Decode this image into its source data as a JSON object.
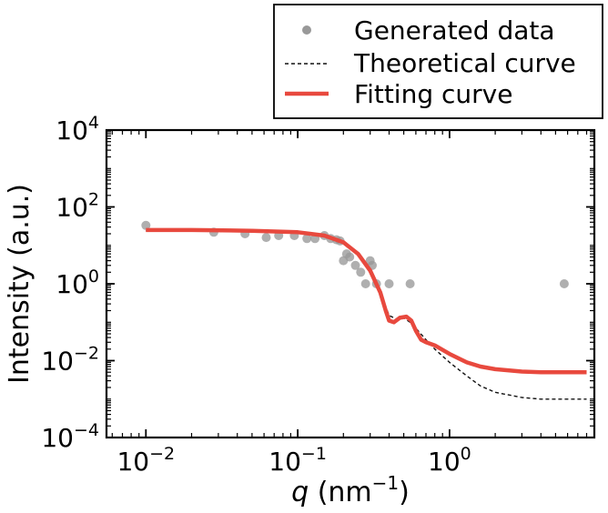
{
  "chart_data": {
    "type": "scatter",
    "title": "",
    "xlabel": {
      "symbol": "q",
      "unit_prefix": " (nm",
      "unit_exp": "−1",
      "unit_suffix": ")"
    },
    "ylabel": "Intensity (a.u.)",
    "xscale": "log",
    "yscale": "log",
    "xlim": [
      0.0055,
      9
    ],
    "ylim": [
      0.0001,
      10000
    ],
    "legend_position": "top-right, above plot",
    "x_ticks": [
      {
        "value": 0.01,
        "base": "10",
        "exp": "−2"
      },
      {
        "value": 0.1,
        "base": "10",
        "exp": "−1"
      },
      {
        "value": 1,
        "base": "10",
        "exp": "0"
      }
    ],
    "y_ticks": [
      {
        "value": 0.0001,
        "base": "10",
        "exp": "−4"
      },
      {
        "value": 0.01,
        "base": "10",
        "exp": "−2"
      },
      {
        "value": 1,
        "base": "10",
        "exp": "0"
      },
      {
        "value": 100,
        "base": "10",
        "exp": "2"
      },
      {
        "value": 10000,
        "base": "10",
        "exp": "4"
      }
    ],
    "series": [
      {
        "name": "Generated data",
        "kind": "scatter",
        "color": "#999999",
        "x": [
          0.01,
          0.028,
          0.045,
          0.062,
          0.075,
          0.095,
          0.115,
          0.13,
          0.15,
          0.165,
          0.18,
          0.19,
          0.2,
          0.21,
          0.22,
          0.24,
          0.26,
          0.28,
          0.3,
          0.31,
          0.33,
          0.4,
          0.55,
          5.7
        ],
        "y": [
          33,
          22,
          20,
          16,
          18,
          18,
          15,
          15,
          18,
          15,
          14,
          13,
          4,
          6,
          5,
          3,
          2,
          1,
          4,
          3,
          1,
          1,
          1,
          1
        ]
      },
      {
        "name": "Theoretical curve",
        "kind": "line",
        "style": "dashed",
        "color": "#111111",
        "x": [
          0.01,
          0.02,
          0.05,
          0.1,
          0.15,
          0.2,
          0.25,
          0.3,
          0.35,
          0.4,
          0.45,
          0.5,
          0.55,
          0.6,
          0.7,
          0.8,
          1,
          1.3,
          1.6,
          2,
          3,
          4,
          6,
          8
        ],
        "y": [
          24,
          24,
          23,
          21,
          17,
          11,
          5.5,
          2,
          0.6,
          0.15,
          0.12,
          0.13,
          0.1,
          0.07,
          0.035,
          0.02,
          0.009,
          0.004,
          0.0022,
          0.0015,
          0.0011,
          0.001,
          0.001,
          0.001
        ]
      },
      {
        "name": "Fitting curve",
        "kind": "line",
        "style": "solid",
        "color": "#e8493e",
        "x": [
          0.01,
          0.02,
          0.05,
          0.1,
          0.15,
          0.2,
          0.25,
          0.3,
          0.35,
          0.38,
          0.4,
          0.43,
          0.47,
          0.52,
          0.56,
          0.6,
          0.65,
          0.7,
          0.8,
          1,
          1.3,
          1.6,
          2,
          3,
          4,
          6,
          8
        ],
        "y": [
          25,
          25,
          24,
          22,
          18,
          12,
          6,
          2.2,
          0.6,
          0.2,
          0.11,
          0.1,
          0.13,
          0.14,
          0.11,
          0.06,
          0.035,
          0.03,
          0.025,
          0.015,
          0.009,
          0.007,
          0.006,
          0.0052,
          0.005,
          0.005,
          0.005
        ]
      }
    ]
  }
}
